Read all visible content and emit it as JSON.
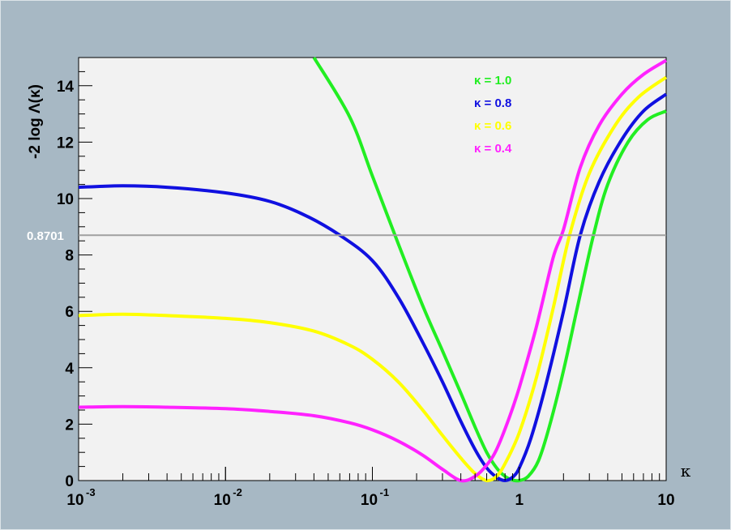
{
  "chart_data": {
    "type": "line",
    "title": "",
    "xlabel": "κ",
    "ylabel": "-2 log Λ(κ)",
    "x_scale": "log",
    "xlim": [
      0.001,
      10
    ],
    "ylim": [
      0,
      15
    ],
    "x_ticks": [
      {
        "value": 0.001,
        "base": "10",
        "exp": "-3"
      },
      {
        "value": 0.01,
        "base": "10",
        "exp": "-2"
      },
      {
        "value": 0.1,
        "base": "10",
        "exp": "-1"
      },
      {
        "value": 1,
        "base": "1",
        "exp": ""
      },
      {
        "value": 10,
        "base": "10",
        "exp": ""
      }
    ],
    "y_ticks": [
      0,
      2,
      4,
      6,
      8,
      10,
      12,
      14
    ],
    "reference_line": {
      "y": 8.7,
      "label": "0.8701",
      "color": "#a0a0a0"
    },
    "legend_placement": "top-right",
    "grid": false,
    "series": [
      {
        "name": "κ = 1.0",
        "color": "#22ee22",
        "points": [
          [
            0.04,
            15.0
          ],
          [
            0.07,
            12.9
          ],
          [
            0.1,
            10.8
          ],
          [
            0.15,
            8.4
          ],
          [
            0.22,
            6.2
          ],
          [
            0.3,
            4.6
          ],
          [
            0.4,
            3.1
          ],
          [
            0.5,
            1.9
          ],
          [
            0.6,
            1.0
          ],
          [
            0.7,
            0.45
          ],
          [
            0.8,
            0.15
          ],
          [
            0.9,
            0.02
          ],
          [
            1.0,
            0.0
          ],
          [
            1.15,
            0.15
          ],
          [
            1.35,
            0.7
          ],
          [
            1.6,
            1.9
          ],
          [
            2.0,
            3.9
          ],
          [
            2.5,
            6.2
          ],
          [
            3.2,
            8.7
          ],
          [
            4.0,
            10.5
          ],
          [
            5.5,
            12.0
          ],
          [
            7.5,
            12.8
          ],
          [
            10.0,
            13.1
          ]
        ]
      },
      {
        "name": "κ = 0.8",
        "color": "#1010e0",
        "points": [
          [
            0.001,
            10.4
          ],
          [
            0.002,
            10.45
          ],
          [
            0.004,
            10.4
          ],
          [
            0.01,
            10.2
          ],
          [
            0.02,
            9.9
          ],
          [
            0.035,
            9.4
          ],
          [
            0.06,
            8.7
          ],
          [
            0.1,
            7.8
          ],
          [
            0.15,
            6.5
          ],
          [
            0.22,
            4.9
          ],
          [
            0.3,
            3.5
          ],
          [
            0.4,
            2.1
          ],
          [
            0.5,
            1.1
          ],
          [
            0.6,
            0.45
          ],
          [
            0.7,
            0.12
          ],
          [
            0.8,
            0.0
          ],
          [
            0.9,
            0.12
          ],
          [
            1.0,
            0.45
          ],
          [
            1.2,
            1.5
          ],
          [
            1.5,
            3.3
          ],
          [
            2.0,
            6.0
          ],
          [
            2.6,
            8.7
          ],
          [
            3.5,
            10.6
          ],
          [
            5.0,
            12.1
          ],
          [
            7.0,
            13.1
          ],
          [
            10.0,
            13.7
          ]
        ]
      },
      {
        "name": "κ = 0.6",
        "color": "#ffff00",
        "points": [
          [
            0.001,
            5.85
          ],
          [
            0.002,
            5.9
          ],
          [
            0.004,
            5.85
          ],
          [
            0.01,
            5.75
          ],
          [
            0.02,
            5.6
          ],
          [
            0.04,
            5.3
          ],
          [
            0.07,
            4.8
          ],
          [
            0.1,
            4.3
          ],
          [
            0.15,
            3.5
          ],
          [
            0.22,
            2.5
          ],
          [
            0.3,
            1.6
          ],
          [
            0.4,
            0.8
          ],
          [
            0.5,
            0.25
          ],
          [
            0.6,
            0.0
          ],
          [
            0.7,
            0.15
          ],
          [
            0.8,
            0.6
          ],
          [
            1.0,
            1.7
          ],
          [
            1.3,
            3.6
          ],
          [
            1.7,
            6.1
          ],
          [
            2.2,
            8.7
          ],
          [
            3.0,
            10.9
          ],
          [
            4.5,
            12.6
          ],
          [
            6.5,
            13.6
          ],
          [
            10.0,
            14.3
          ]
        ]
      },
      {
        "name": "κ = 0.4",
        "color": "#ff22ff",
        "points": [
          [
            0.001,
            2.6
          ],
          [
            0.002,
            2.62
          ],
          [
            0.004,
            2.6
          ],
          [
            0.01,
            2.55
          ],
          [
            0.02,
            2.45
          ],
          [
            0.04,
            2.3
          ],
          [
            0.07,
            2.05
          ],
          [
            0.1,
            1.8
          ],
          [
            0.15,
            1.4
          ],
          [
            0.22,
            0.9
          ],
          [
            0.3,
            0.4
          ],
          [
            0.4,
            0.0
          ],
          [
            0.5,
            0.15
          ],
          [
            0.6,
            0.55
          ],
          [
            0.7,
            1.1
          ],
          [
            0.85,
            2.2
          ],
          [
            1.0,
            3.3
          ],
          [
            1.3,
            5.4
          ],
          [
            1.7,
            7.9
          ],
          [
            2.0,
            8.9
          ],
          [
            2.6,
            11.1
          ],
          [
            3.5,
            12.6
          ],
          [
            5.0,
            13.7
          ],
          [
            7.0,
            14.4
          ],
          [
            10.0,
            14.9
          ]
        ]
      }
    ]
  }
}
